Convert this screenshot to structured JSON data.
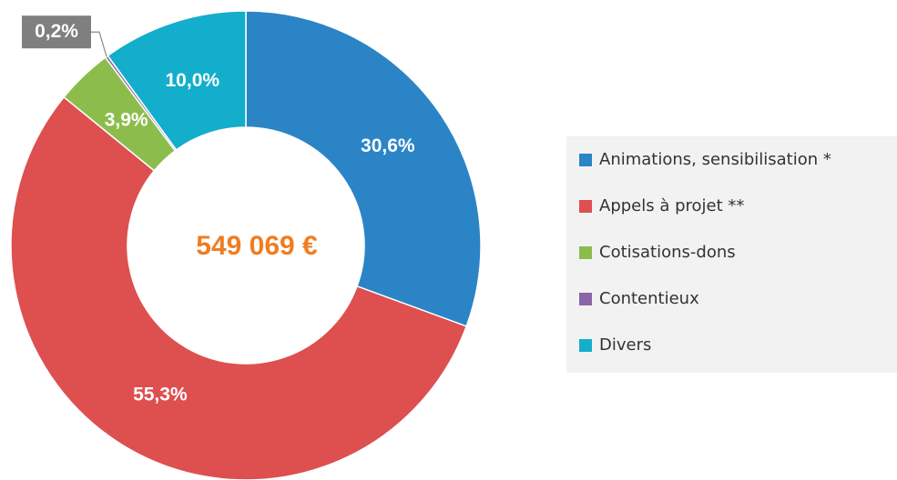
{
  "chart_data": {
    "type": "donut",
    "categories": [
      "Animations, sensibilisation *",
      "Appels à projet **",
      "Cotisations-dons",
      "Contentieux",
      "Divers"
    ],
    "values": [
      30.6,
      55.3,
      3.9,
      0.2,
      10.0
    ],
    "value_labels": [
      "30,6%",
      "55,3%",
      "3,9%",
      "0,2%",
      "10,0%"
    ],
    "colors": [
      "#2b84c6",
      "#de4f4f",
      "#8cbd4c",
      "#8a64a8",
      "#13aecb"
    ],
    "center_label": "549 069 €",
    "legend": "right"
  }
}
